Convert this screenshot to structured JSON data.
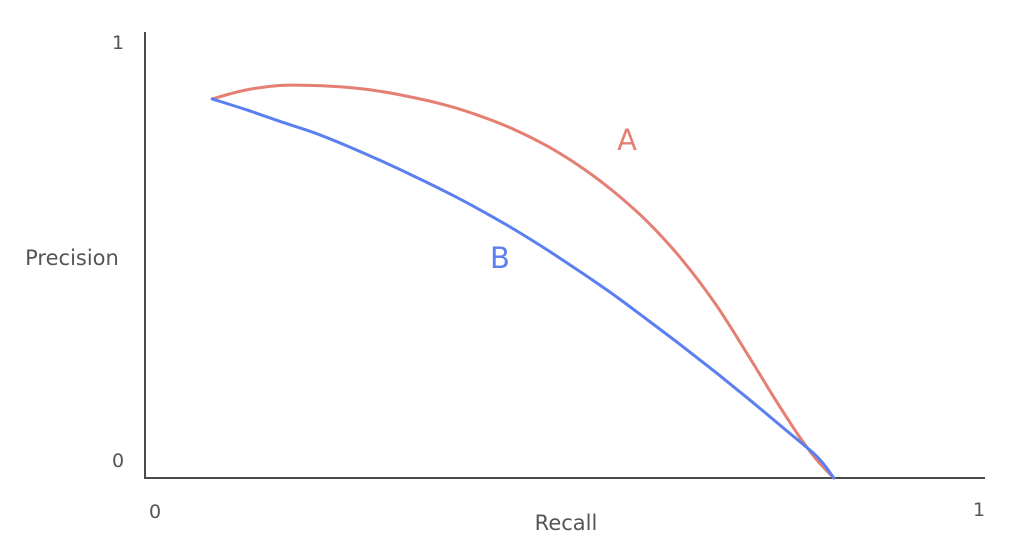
{
  "chart_data": {
    "type": "line",
    "title": "",
    "xlabel": "Recall",
    "ylabel": "Precision",
    "xlim": [
      0,
      1
    ],
    "ylim": [
      0,
      1
    ],
    "x_ticks": [
      "0",
      "1"
    ],
    "y_ticks": [
      "0",
      "1"
    ],
    "grid": false,
    "series": [
      {
        "name": "A",
        "color": "#e57f74",
        "x": [
          0.08,
          0.12,
          0.16,
          0.2,
          0.24,
          0.28,
          0.32,
          0.36,
          0.4,
          0.44,
          0.48,
          0.52,
          0.56,
          0.6,
          0.64,
          0.68,
          0.72,
          0.75,
          0.78,
          0.8,
          0.82
        ],
        "y": [
          0.85,
          0.87,
          0.88,
          0.88,
          0.876,
          0.867,
          0.853,
          0.835,
          0.811,
          0.781,
          0.743,
          0.696,
          0.639,
          0.571,
          0.488,
          0.388,
          0.269,
          0.177,
          0.09,
          0.04,
          0.0
        ]
      },
      {
        "name": "B",
        "color": "#5b7ff0",
        "x": [
          0.08,
          0.12,
          0.16,
          0.2,
          0.24,
          0.28,
          0.32,
          0.36,
          0.4,
          0.44,
          0.48,
          0.52,
          0.56,
          0.6,
          0.64,
          0.68,
          0.72,
          0.76,
          0.8,
          0.82
        ],
        "y": [
          0.85,
          0.826,
          0.8,
          0.775,
          0.745,
          0.712,
          0.677,
          0.64,
          0.6,
          0.557,
          0.51,
          0.46,
          0.408,
          0.352,
          0.295,
          0.236,
          0.175,
          0.112,
          0.048,
          0.0
        ]
      }
    ]
  }
}
